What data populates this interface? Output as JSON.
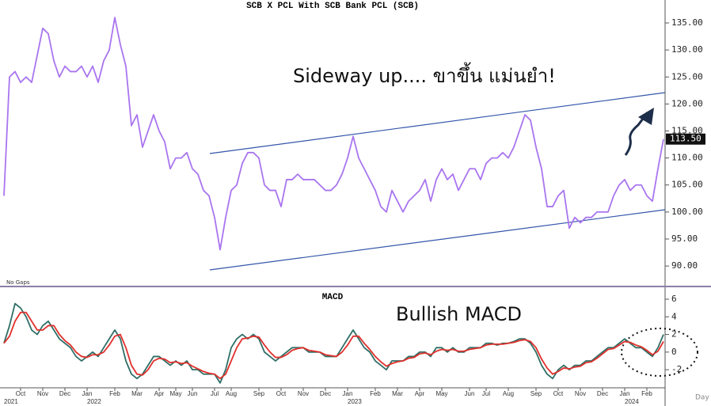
{
  "chart_data": [
    {
      "type": "line",
      "title": "SCB X PCL With SCB Bank PCL (SCB)",
      "annotation": "Sideway up.... ขาขึ้น แม่นยำ!",
      "note": "No Gaps",
      "ylim": [
        86.5,
        139.25
      ],
      "yticks": [
        {
          "value": 135,
          "label": "135.00"
        },
        {
          "value": 130,
          "label": "130.00"
        },
        {
          "value": 125,
          "label": "125.00"
        },
        {
          "value": 120,
          "label": "120.00"
        },
        {
          "value": 115,
          "label": "115.00"
        },
        {
          "value": 110,
          "label": "110.00"
        },
        {
          "value": 105,
          "label": "105.00"
        },
        {
          "value": 100,
          "label": "100.00"
        },
        {
          "value": 95,
          "label": "95.00"
        },
        {
          "value": 90,
          "label": "90.00"
        }
      ],
      "series": [
        {
          "color": "#a975ef",
          "values": [
            103,
            125,
            126,
            124,
            125,
            124,
            129,
            134,
            133,
            128,
            125,
            127,
            126,
            126,
            127,
            125,
            127,
            124,
            128,
            130,
            136,
            131,
            127,
            116,
            118,
            112,
            115,
            118,
            115,
            113,
            108,
            110,
            110,
            111,
            108,
            107,
            104,
            103,
            99,
            93,
            99,
            104,
            105,
            109,
            111,
            111,
            110,
            105,
            104,
            104,
            101,
            106,
            106,
            107,
            106,
            106,
            106,
            105,
            104,
            104,
            105,
            107,
            110,
            114,
            110,
            108,
            106,
            104,
            101,
            100,
            104,
            102,
            100,
            102,
            103,
            104,
            106,
            102,
            106,
            108,
            106,
            107,
            104,
            106,
            108,
            108,
            106,
            109,
            110,
            110,
            111,
            110,
            112,
            115,
            118,
            117,
            112,
            108,
            101,
            101,
            103,
            104,
            97,
            99,
            98,
            99,
            99,
            100,
            100,
            100,
            103,
            105,
            106,
            104,
            105,
            105,
            103,
            102,
            108,
            113.5
          ],
          "value_labels": [
            null,
            null,
            null,
            null,
            null,
            null,
            null,
            null,
            null,
            null,
            null,
            null,
            null,
            null,
            null,
            null,
            null,
            null,
            null,
            null,
            null,
            null,
            null,
            null,
            null,
            null,
            null,
            null,
            null,
            null,
            null,
            null,
            null,
            null,
            null,
            null,
            null,
            null,
            null,
            null,
            null,
            null,
            null,
            null,
            null,
            null,
            null,
            null,
            null,
            null,
            null,
            null,
            null,
            null,
            null,
            null,
            null,
            null,
            null,
            null,
            null,
            null,
            null,
            null,
            null,
            null,
            null,
            null,
            null,
            null,
            null,
            null,
            null,
            null,
            null,
            null,
            null,
            null,
            null,
            null,
            null,
            null,
            null,
            null,
            null,
            null,
            null,
            null,
            null,
            null,
            null,
            null,
            null,
            null,
            null,
            null,
            null,
            null,
            null,
            null,
            null,
            null,
            null,
            null,
            null,
            null,
            null,
            null,
            null,
            null,
            null,
            null,
            null,
            null,
            null,
            null,
            null,
            null,
            null,
            "113.50"
          ]
        }
      ]
    },
    {
      "type": "line",
      "title": "MACD",
      "annotation": "Bullish MACD",
      "x_axis_label": "Day",
      "ylim": [
        -4.05,
        6.9
      ],
      "yticks": [
        6,
        4,
        2,
        0,
        -2
      ],
      "categories": [
        null,
        null,
        null,
        "Oct",
        null,
        null,
        null,
        "Nov",
        null,
        null,
        null,
        "Dec",
        null,
        null,
        null,
        "Jan",
        null,
        null,
        null,
        null,
        "Feb",
        null,
        null,
        null,
        "Mar",
        null,
        null,
        null,
        "Apr",
        null,
        null,
        "May",
        null,
        null,
        "Jun",
        null,
        null,
        null,
        "Jul",
        null,
        null,
        "Aug",
        null,
        null,
        null,
        null,
        "Sep",
        null,
        null,
        null,
        "Oct",
        null,
        null,
        null,
        "Nov",
        null,
        null,
        null,
        "Dec",
        null,
        null,
        null,
        "Jan",
        null,
        null,
        null,
        null,
        "Feb",
        null,
        null,
        null,
        "Mar",
        null,
        null,
        null,
        "Apr",
        null,
        null,
        null,
        "May",
        null,
        null,
        null,
        null,
        "Jun",
        null,
        null,
        "Jul",
        null,
        null,
        null,
        "Aug",
        null,
        null,
        null,
        null,
        "Sep",
        null,
        null,
        null,
        "Oct",
        null,
        null,
        null,
        "Nov",
        null,
        null,
        null,
        "Dec",
        null,
        null,
        null,
        "Jan",
        null,
        null,
        null,
        "Feb",
        null,
        null,
        null
      ],
      "years": [
        "2021",
        null,
        null,
        null,
        null,
        null,
        null,
        null,
        null,
        null,
        null,
        null,
        null,
        null,
        null,
        "2022",
        null,
        null,
        null,
        null,
        null,
        null,
        null,
        null,
        null,
        null,
        null,
        null,
        null,
        null,
        null,
        null,
        null,
        null,
        null,
        null,
        null,
        null,
        null,
        null,
        null,
        null,
        null,
        null,
        null,
        null,
        null,
        null,
        null,
        null,
        null,
        null,
        null,
        null,
        null,
        null,
        null,
        null,
        null,
        null,
        null,
        null,
        "2023",
        null,
        null,
        null,
        null,
        null,
        null,
        null,
        null,
        null,
        null,
        null,
        null,
        null,
        null,
        null,
        null,
        null,
        null,
        null,
        null,
        null,
        null,
        null,
        null,
        null,
        null,
        null,
        null,
        null,
        null,
        null,
        null,
        null,
        null,
        null,
        null,
        null,
        null,
        null,
        null,
        null,
        null,
        null,
        null,
        null,
        null,
        null,
        null,
        null,
        "2024",
        null,
        null,
        null,
        null,
        null,
        null,
        null
      ],
      "series": [
        {
          "color": "#2f6f66",
          "values": [
            1,
            3,
            5.5,
            5,
            4,
            2.5,
            2,
            3,
            3.5,
            2.5,
            1.5,
            1,
            0.5,
            -0.5,
            -1,
            -0.5,
            0,
            -0.5,
            0.5,
            1.5,
            2.5,
            1.5,
            -1,
            -2.5,
            -3,
            -2.5,
            -1.5,
            -0.5,
            -0.5,
            -1,
            -1.5,
            -1,
            -1.5,
            -1,
            -2,
            -2,
            -2.5,
            -2.5,
            -2.5,
            -3.5,
            -2,
            0.5,
            1.5,
            2,
            1.5,
            2,
            1.5,
            0,
            -0.5,
            -1,
            -0.5,
            0,
            0.5,
            0.5,
            0.5,
            0,
            0,
            0,
            -0.5,
            -0.5,
            -0.5,
            0.5,
            1.5,
            2.5,
            1.5,
            0.5,
            0,
            -1,
            -1.5,
            -2,
            -1,
            -1,
            -1,
            -0.5,
            -0.5,
            0,
            0,
            -0.5,
            0.5,
            0.5,
            0,
            0.5,
            0,
            0,
            0.5,
            0.5,
            0.5,
            1,
            1,
            0.8,
            1,
            1,
            1.2,
            1.5,
            1.5,
            1,
            0,
            -1.5,
            -2.5,
            -3,
            -2,
            -1.5,
            -2,
            -1.5,
            -1.5,
            -1,
            -1,
            -0.5,
            0,
            0.5,
            0.5,
            1,
            1.5,
            1,
            0.5,
            0.5,
            0,
            -0.5,
            0.5,
            2
          ]
        },
        {
          "color": "#e0302c",
          "values": [
            1,
            1.8,
            3.5,
            4.5,
            4.5,
            3.5,
            2.5,
            2.5,
            3,
            3,
            2,
            1.3,
            0.8,
            0,
            -0.5,
            -0.6,
            -0.3,
            -0.3,
            0,
            0.8,
            1.8,
            2,
            0.5,
            -1.5,
            -2.5,
            -2.6,
            -2,
            -1,
            -0.7,
            -0.8,
            -1.2,
            -1.1,
            -1.3,
            -1.2,
            -1.6,
            -1.9,
            -2.2,
            -2.4,
            -2.5,
            -3,
            -2.5,
            -1,
            0.5,
            1.5,
            1.6,
            1.8,
            1.7,
            0.8,
            0,
            -0.6,
            -0.6,
            -0.3,
            0.2,
            0.4,
            0.5,
            0.2,
            0.1,
            0,
            -0.3,
            -0.4,
            -0.5,
            0,
            0.8,
            1.8,
            1.8,
            1,
            0.3,
            -0.5,
            -1.1,
            -1.6,
            -1.3,
            -1.1,
            -1,
            -0.7,
            -0.6,
            -0.2,
            -0.1,
            -0.3,
            0.1,
            0.3,
            0.2,
            0.3,
            0.1,
            0.1,
            0.3,
            0.4,
            0.5,
            0.8,
            0.9,
            0.9,
            0.9,
            1,
            1.1,
            1.3,
            1.4,
            1.2,
            0.5,
            -0.8,
            -1.8,
            -2.5,
            -2.2,
            -1.8,
            -1.9,
            -1.7,
            -1.6,
            -1.2,
            -1.1,
            -0.7,
            -0.2,
            0.3,
            0.4,
            0.8,
            1.2,
            1.1,
            0.8,
            0.6,
            0.2,
            -0.3,
            0.1,
            1.2
          ]
        }
      ]
    }
  ]
}
